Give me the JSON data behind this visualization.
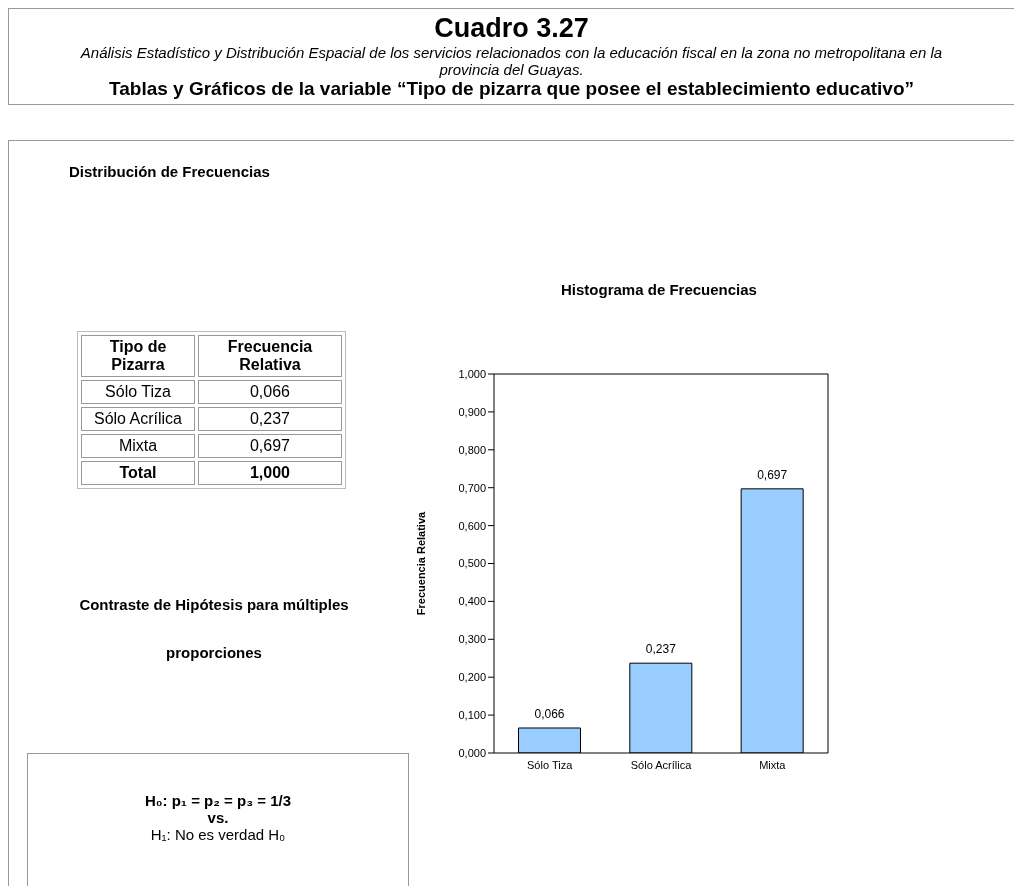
{
  "chart_data": {
    "type": "bar",
    "title": "Histograma de Frecuencias",
    "subtitle": "Análisis Estadístico y Distribución Espacial de los servicios relacionados con la educación fiscal en la zona no metropolitana en la provincia del Guayas.",
    "ylabel": "Frecuencia Relativa",
    "categories": [
      "Sólo Tiza",
      "Sólo Acrílica",
      "Mixta"
    ],
    "values": [
      0.066,
      0.237,
      0.697
    ],
    "value_labels": [
      "0,066",
      "0,237",
      "0,697"
    ],
    "color": "#99ccff",
    "ylim": [
      0,
      1
    ],
    "yticks": [
      {
        "value": 0,
        "label": "0,000"
      },
      {
        "value": 0.1,
        "label": "0,100"
      },
      {
        "value": 0.2,
        "label": "0,200"
      },
      {
        "value": 0.3,
        "label": "0,300"
      },
      {
        "value": 0.4,
        "label": "0,400"
      },
      {
        "value": 0.5,
        "label": "0,500"
      },
      {
        "value": 0.6,
        "label": "0,600"
      },
      {
        "value": 0.7,
        "label": "0,700"
      },
      {
        "value": 0.8,
        "label": "0,800"
      },
      {
        "value": 0.9,
        "label": "0,900"
      },
      {
        "value": 1,
        "label": "1,000"
      }
    ],
    "annotations": [
      "Cuadro 3.27",
      "Tablas y Gráficos de la variable “Tipo de pizarra que posee el establecimiento educativo”",
      "Distribución de Frecuencias",
      "Tipo de Pizarra",
      "Frecuencia Relativa",
      "Total",
      "1,000",
      "Contraste de Hipótesis para múltiples proporciones",
      "H₀: p₁ = p₂ = p₃ = 1/3",
      "vs.",
      "H₁: No es verdad H₀"
    ]
  }
}
